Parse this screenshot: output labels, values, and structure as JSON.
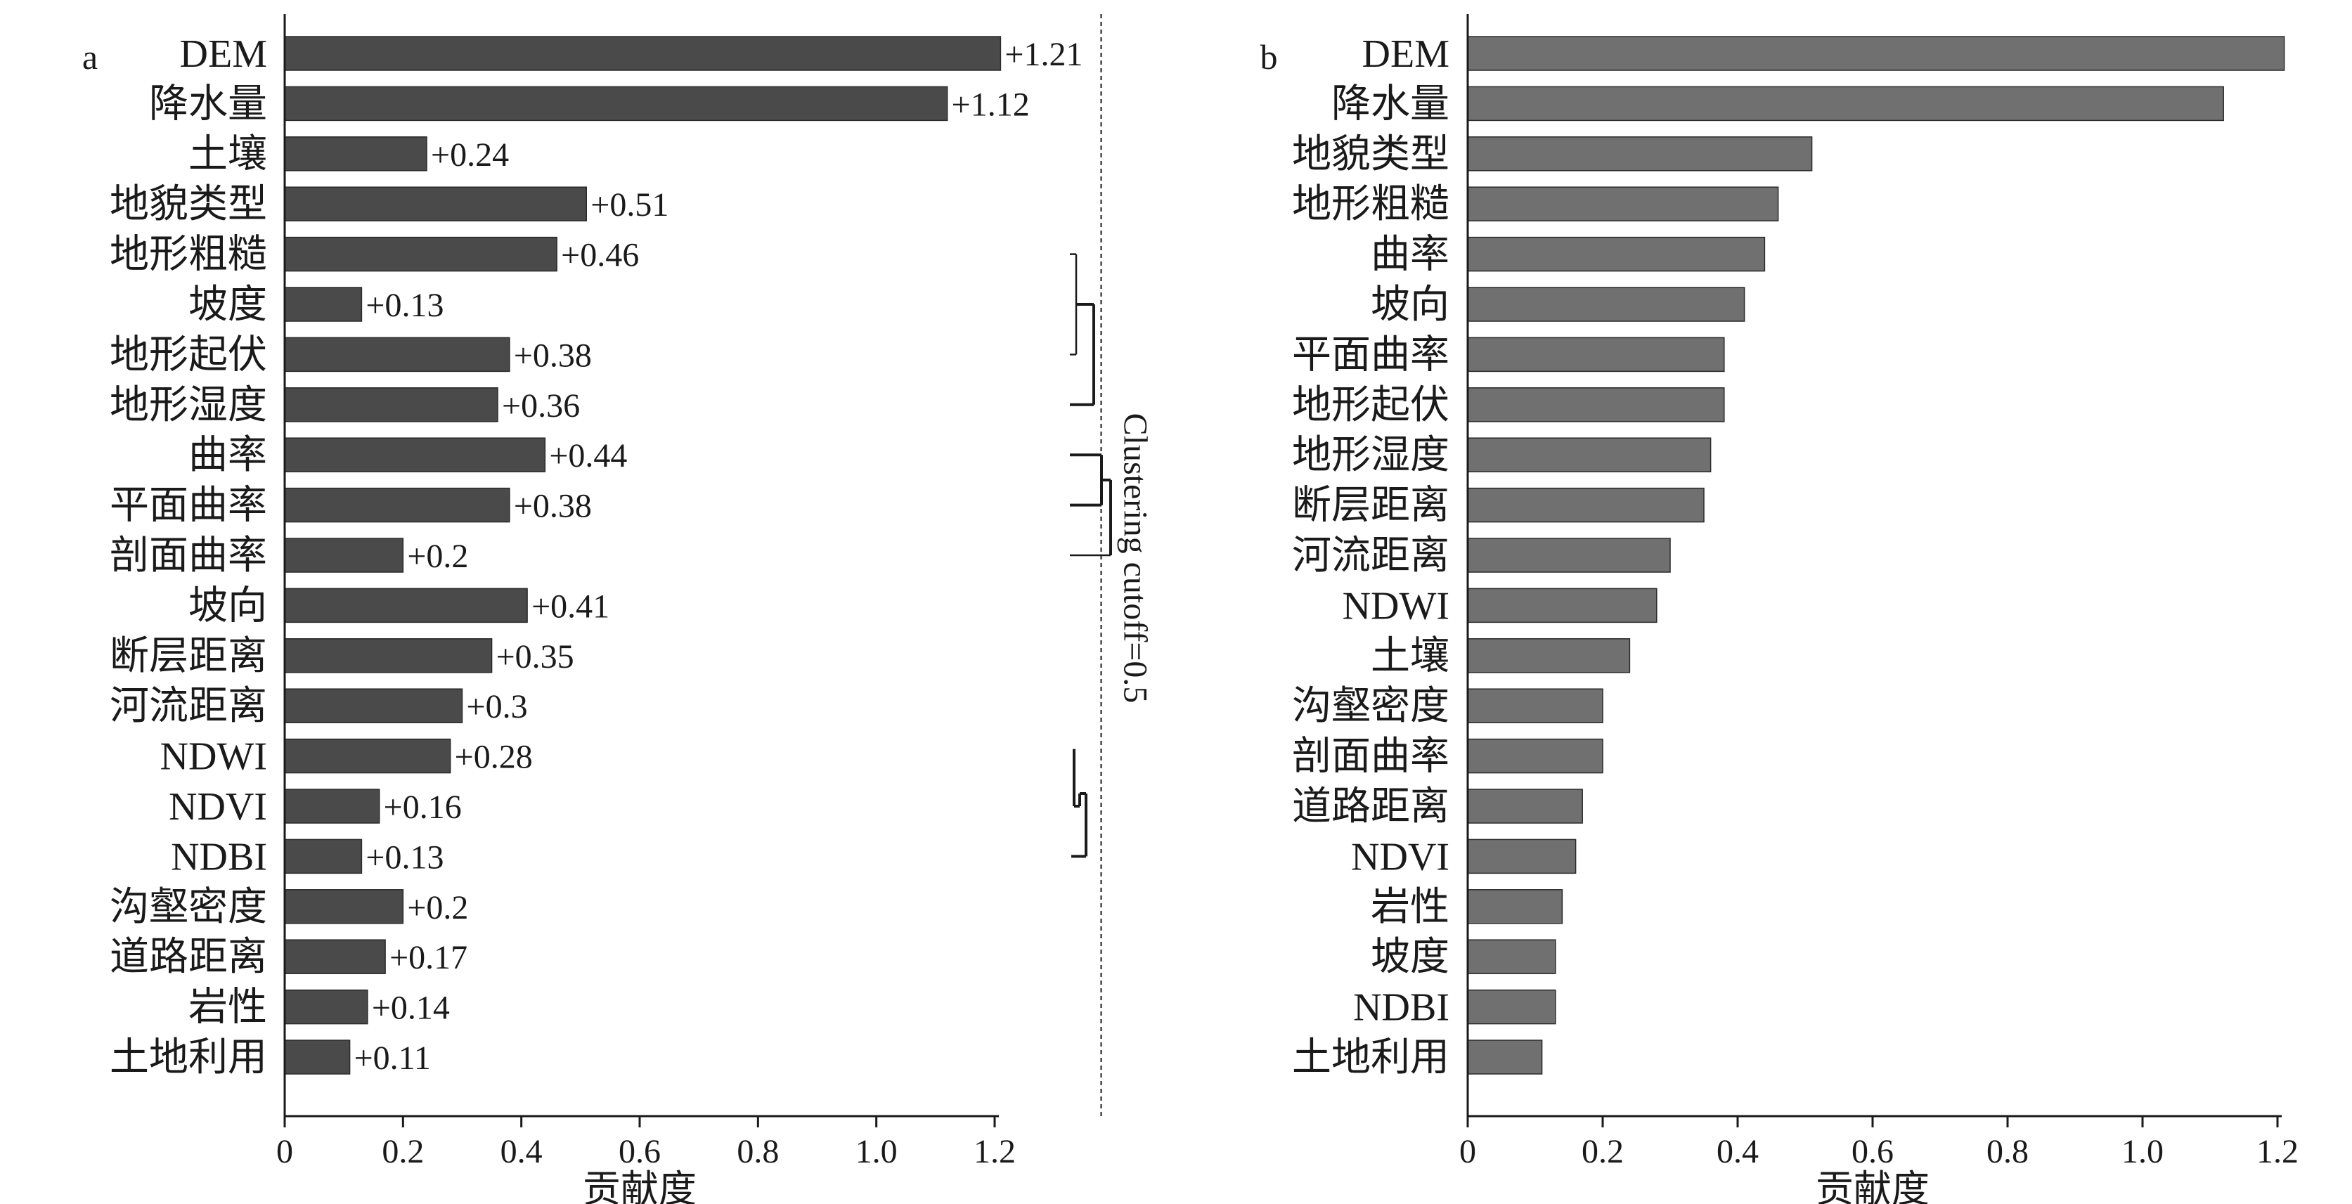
{
  "chart_data": [
    {
      "type": "bar",
      "orientation": "horizontal",
      "panel_label": "a",
      "categories": [
        "DEM",
        "降水量",
        "土壤",
        "地貌类型",
        "地形粗糙",
        "坡度",
        "地形起伏",
        "地形湿度",
        "曲率",
        "平面曲率",
        "剖面曲率",
        "坡向",
        "断层距离",
        "河流距离",
        "NDWI",
        "NDVI",
        "NDBI",
        "沟壑密度",
        "道路距离",
        "岩性",
        "土地利用"
      ],
      "values": [
        1.21,
        1.12,
        0.24,
        0.51,
        0.46,
        0.13,
        0.38,
        0.36,
        0.44,
        0.38,
        0.2,
        0.41,
        0.35,
        0.3,
        0.28,
        0.16,
        0.13,
        0.2,
        0.17,
        0.14,
        0.11
      ],
      "value_labels": [
        "+1.21",
        "+1.12",
        "+0.24",
        "+0.51",
        "+0.46",
        "+0.13",
        "+0.38",
        "+0.36",
        "+0.44",
        "+0.38",
        "+0.2",
        "+0.41",
        "+0.35",
        "+0.3",
        "+0.28",
        "+0.16",
        "+0.13",
        "+0.2",
        "+0.17",
        "+0.14",
        "+0.11"
      ],
      "xlabel": "贡献度",
      "xlim": [
        0,
        1.2
      ],
      "xticks": [
        "0",
        "0.2",
        "0.4",
        "0.6",
        "0.8",
        "1.0",
        "1.2"
      ],
      "bar_color": "#4a4a4a",
      "cutoff_label": "Clustering cutoff=0.5",
      "cutoff_value": 1.38,
      "clusters": [
        {
          "members": [
            "地形粗糙",
            "坡度",
            "地形起伏",
            "地形湿度"
          ]
        },
        {
          "members": [
            "曲率",
            "平面曲率",
            "剖面曲率"
          ]
        },
        {
          "members": [
            "NDWI",
            "NDVI",
            "NDBI"
          ]
        }
      ]
    },
    {
      "type": "bar",
      "orientation": "horizontal",
      "panel_label": "b",
      "categories": [
        "DEM",
        "降水量",
        "地貌类型",
        "地形粗糙",
        "曲率",
        "坡向",
        "平面曲率",
        "地形起伏",
        "地形湿度",
        "断层距离",
        "河流距离",
        "NDWI",
        "土壤",
        "沟壑密度",
        "剖面曲率",
        "道路距离",
        "NDVI",
        "岩性",
        "坡度",
        "NDBI",
        "土地利用"
      ],
      "values": [
        1.21,
        1.12,
        0.51,
        0.46,
        0.44,
        0.41,
        0.38,
        0.38,
        0.36,
        0.35,
        0.3,
        0.28,
        0.24,
        0.2,
        0.2,
        0.17,
        0.16,
        0.14,
        0.13,
        0.13,
        0.11
      ],
      "xlabel": "贡献度",
      "xlim": [
        0,
        1.2
      ],
      "xticks": [
        "0",
        "0.2",
        "0.4",
        "0.6",
        "0.8",
        "1.0",
        "1.2"
      ],
      "bar_color": "#707070"
    }
  ]
}
